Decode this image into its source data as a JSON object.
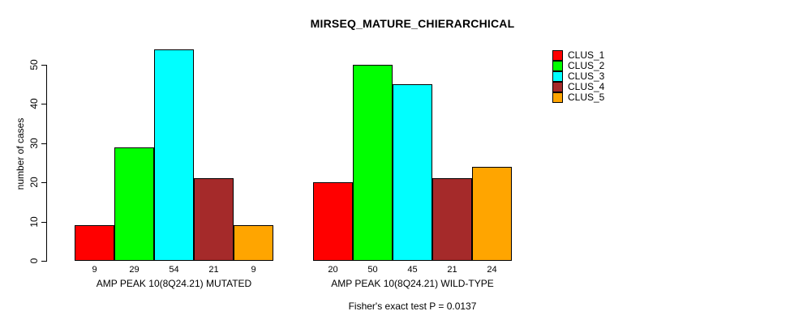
{
  "chart_data": {
    "type": "bar",
    "title": "MIRSEQ_MATURE_CHIERARCHICAL",
    "ylabel": "number of cases",
    "xlabel": "",
    "ylim": [
      0,
      54
    ],
    "yticks": [
      0,
      10,
      20,
      30,
      40,
      50
    ],
    "grid": false,
    "legend_position": "right",
    "bar_border_color": "#000000",
    "categories": [
      "AMP PEAK 10(8Q24.21) MUTATED",
      "AMP PEAK 10(8Q24.21) WILD-TYPE"
    ],
    "series": [
      {
        "name": "CLUS_1",
        "color": "#ff0000",
        "values": [
          9,
          20
        ]
      },
      {
        "name": "CLUS_2",
        "color": "#00ff00",
        "values": [
          29,
          50
        ]
      },
      {
        "name": "CLUS_3",
        "color": "#00ffff",
        "values": [
          54,
          45
        ]
      },
      {
        "name": "CLUS_4",
        "color": "#a52a2a",
        "values": [
          21,
          21
        ]
      },
      {
        "name": "CLUS_5",
        "color": "#ffa500",
        "values": [
          9,
          24
        ]
      }
    ],
    "annotation": "Fisher's exact test P = 0.0137"
  }
}
